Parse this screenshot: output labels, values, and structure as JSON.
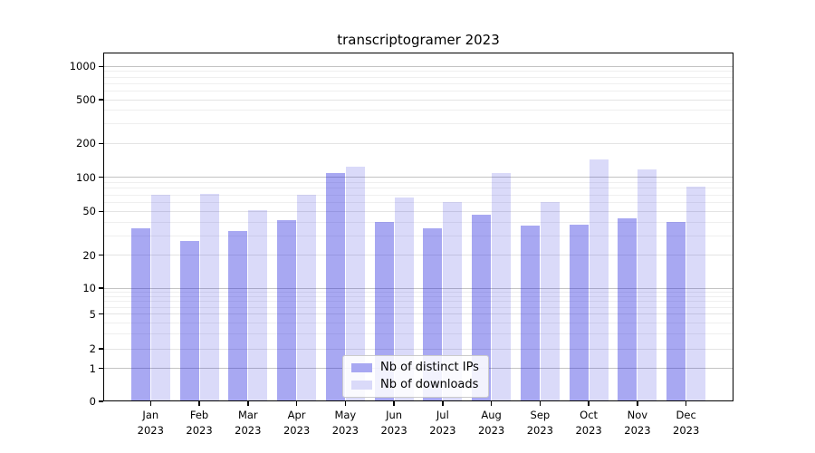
{
  "title": "transcriptogramer 2023",
  "legend": {
    "items": [
      {
        "label": "Nb of distinct IPs",
        "color": "#a8a8f2"
      },
      {
        "label": "Nb of downloads",
        "color": "#dadaf9"
      }
    ]
  },
  "chart_data": {
    "type": "bar",
    "title": "transcriptogramer 2023",
    "categories": [
      "Jan 2023",
      "Feb 2023",
      "Mar 2023",
      "Apr 2023",
      "May 2023",
      "Jun 2023",
      "Jul 2023",
      "Aug 2023",
      "Sep 2023",
      "Oct 2023",
      "Nov 2023",
      "Dec 2023"
    ],
    "series": [
      {
        "name": "Nb of distinct IPs",
        "color": "#a8a8f2",
        "values": [
          35,
          27,
          33,
          42,
          110,
          40,
          35,
          47,
          37,
          38,
          43,
          40
        ]
      },
      {
        "name": "Nb of downloads",
        "color": "#dadaf9",
        "values": [
          70,
          72,
          51,
          70,
          124,
          66,
          60,
          110,
          60,
          145,
          118,
          82
        ]
      }
    ],
    "xlabel": "",
    "ylabel": "",
    "yscale": "asinh",
    "yticks": [
      0,
      1,
      2,
      5,
      10,
      20,
      50,
      100,
      200,
      500,
      1000
    ],
    "minor_gridlines": [
      3,
      4,
      6,
      7,
      8,
      9,
      30,
      40,
      60,
      70,
      80,
      90,
      300,
      400,
      600,
      700,
      800,
      900
    ],
    "ylim": [
      0,
      1260
    ],
    "grid": "horizontal",
    "legend_position": "lower center"
  }
}
